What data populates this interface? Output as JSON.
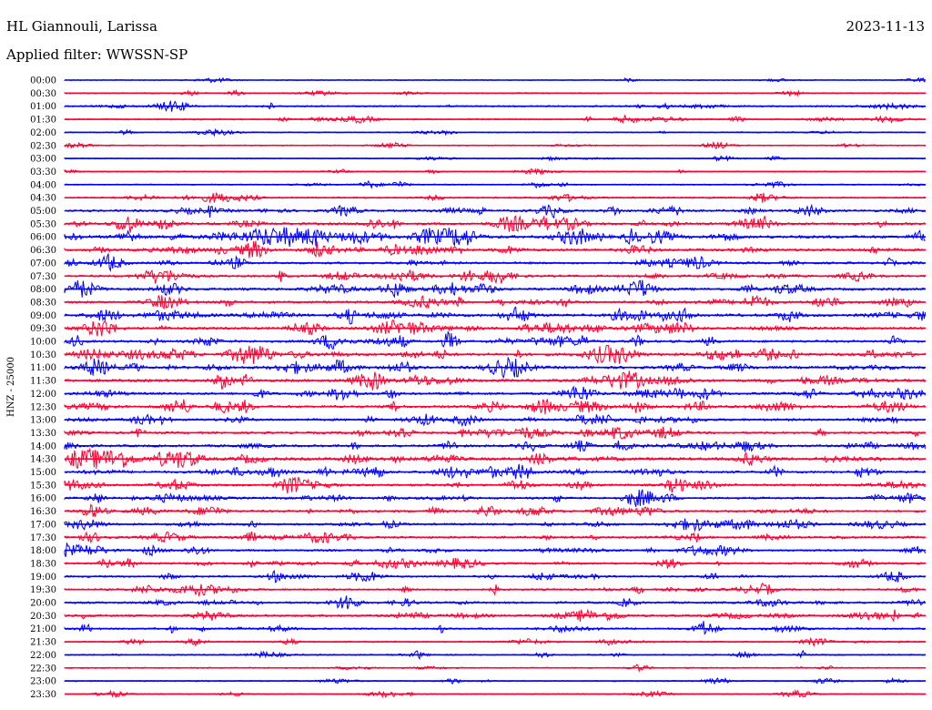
{
  "header": {
    "station": "HL Giannouli, Larissa",
    "filter": "Applied filter: WWSSN-SP",
    "date": "2023-11-13"
  },
  "chart_data": {
    "type": "line",
    "title": "HL Giannouli, Larissa",
    "subtitle": "Applied filter: WWSSN-SP",
    "date": "2023-11-13",
    "ylabel": "HNZ - 25000",
    "trace_colors": [
      "#0000ff",
      "#ff0033"
    ],
    "row_labels": [
      "00:00",
      "00:30",
      "01:00",
      "01:30",
      "02:00",
      "02:30",
      "03:00",
      "03:30",
      "04:00",
      "04:30",
      "05:00",
      "05:30",
      "06:00",
      "06:30",
      "07:00",
      "07:30",
      "08:00",
      "08:30",
      "09:00",
      "09:30",
      "10:00",
      "10:30",
      "11:00",
      "11:30",
      "12:00",
      "12:30",
      "13:00",
      "13:30",
      "14:00",
      "14:30",
      "15:00",
      "15:30",
      "16:00",
      "16:30",
      "17:00",
      "17:30",
      "18:00",
      "18:30",
      "19:00",
      "19:30",
      "20:00",
      "20:30",
      "21:00",
      "21:30",
      "22:00",
      "22:30",
      "23:00",
      "23:30"
    ],
    "row_activity": [
      0.05,
      0.12,
      0.25,
      0.2,
      0.12,
      0.12,
      0.08,
      0.12,
      0.15,
      0.25,
      0.45,
      0.55,
      0.7,
      0.55,
      0.45,
      0.45,
      0.55,
      0.5,
      0.65,
      0.55,
      0.5,
      0.65,
      0.6,
      0.6,
      0.5,
      0.55,
      0.5,
      0.45,
      0.5,
      0.65,
      0.55,
      0.45,
      0.45,
      0.45,
      0.4,
      0.45,
      0.4,
      0.4,
      0.35,
      0.35,
      0.4,
      0.45,
      0.35,
      0.2,
      0.2,
      0.15,
      0.12,
      0.1
    ]
  }
}
